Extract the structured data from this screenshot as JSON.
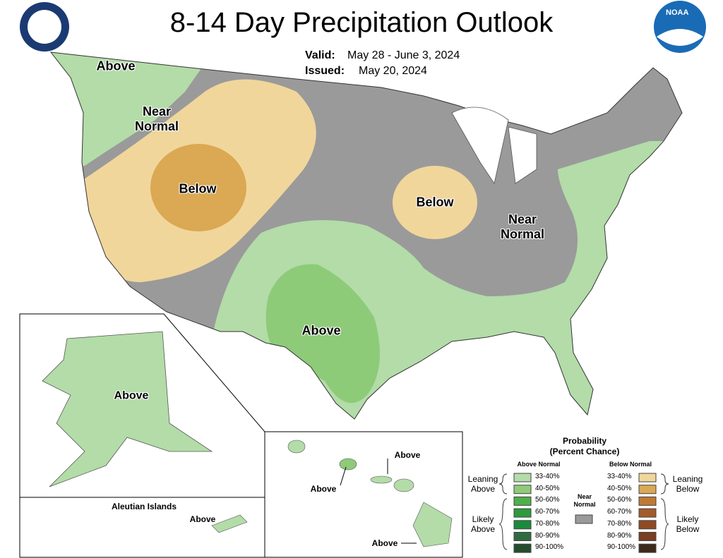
{
  "header": {
    "title": "8-14 Day Precipitation Outlook",
    "valid_label": "Valid:",
    "valid": "May 28 - June 3, 2024",
    "issued_label": "Issued:",
    "issued": "May 20, 2024",
    "logo_text": "NOAA"
  },
  "map_labels": [
    "Above",
    "Near Normal",
    "Below",
    "Below",
    "Near Normal",
    "Above"
  ],
  "insets": {
    "alaska_label": "Above",
    "aleutian_title": "Aleutian Islands",
    "aleutian_label": "Above",
    "hawaii_labels": [
      "Above",
      "Above",
      "Above"
    ]
  },
  "legend": {
    "title": "Probability",
    "subtitle": "(Percent Chance)",
    "above_header": "Above Normal",
    "below_header": "Below Normal",
    "near_normal": {
      "label": "Near Normal",
      "color": "#9a9a9a"
    },
    "above_groups": [
      "Leaning Above",
      "Likely Above"
    ],
    "below_groups": [
      "Leaning Below",
      "Likely Below"
    ],
    "above_ranges": [
      {
        "label": "33-40%",
        "color": "#b3dca8"
      },
      {
        "label": "40-50%",
        "color": "#8dcb79"
      },
      {
        "label": "50-60%",
        "color": "#4fb04a"
      },
      {
        "label": "60-70%",
        "color": "#2e9b3c"
      },
      {
        "label": "70-80%",
        "color": "#1a8a3c"
      },
      {
        "label": "80-90%",
        "color": "#2f6b40"
      },
      {
        "label": "90-100%",
        "color": "#244d2d"
      }
    ],
    "below_ranges": [
      {
        "label": "33-40%",
        "color": "#f1d69b"
      },
      {
        "label": "40-50%",
        "color": "#dba853"
      },
      {
        "label": "50-60%",
        "color": "#c07935"
      },
      {
        "label": "60-70%",
        "color": "#a45b2b"
      },
      {
        "label": "70-80%",
        "color": "#904a23"
      },
      {
        "label": "80-90%",
        "color": "#7a3e20"
      },
      {
        "label": "90-100%",
        "color": "#3e2a1a"
      }
    ]
  }
}
